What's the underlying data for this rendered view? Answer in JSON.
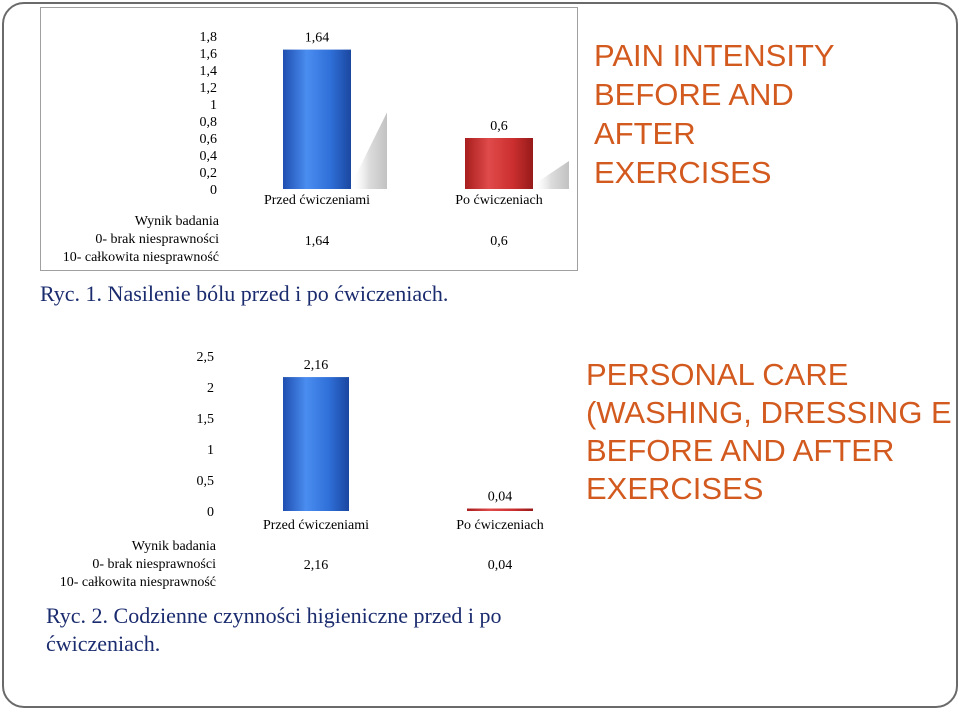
{
  "chart_data": [
    {
      "type": "bar",
      "categories": [
        "Przed ćwiczeniami",
        "Po ćwiczeniach"
      ],
      "values": [
        1.64,
        0.6
      ],
      "value_labels": [
        "1,64",
        "0,6"
      ],
      "yticks": [
        "0",
        "0,2",
        "0,4",
        "0,6",
        "0,8",
        "1",
        "1,2",
        "1,4",
        "1,6",
        "1,8"
      ],
      "ylim": [
        0,
        1.8
      ],
      "table_header": [
        "Wynik badania",
        "0- brak niesprawności",
        "10- całkowita niesprawność"
      ],
      "colors": [
        "#2f6fd8",
        "#cc2f2f"
      ]
    },
    {
      "type": "bar",
      "categories": [
        "Przed ćwiczeniami",
        "Po ćwiczeniach"
      ],
      "values": [
        2.16,
        0.04
      ],
      "value_labels": [
        "2,16",
        "0,04"
      ],
      "yticks": [
        "0",
        "0,5",
        "1",
        "1,5",
        "2",
        "2,5"
      ],
      "ylim": [
        0,
        2.5
      ],
      "table_header": [
        "Wynik badania",
        "0- brak niesprawności",
        "10- całkowita niesprawność"
      ],
      "colors": [
        "#2f6fd8",
        "#cc2f2f"
      ]
    }
  ],
  "captions": {
    "fig1": "Ryc. 1. Nasilenie bólu przed i po ćwiczeniach.",
    "fig2": "Ryc. 2. Codzienne czynności higieniczne przed i po ćwiczeniach."
  },
  "side_titles": {
    "t1": "PAIN INTENSITY\nBEFORE AND\nAFTER\nEXERCISES",
    "t2": "PERSONAL CARE\n(WASHING, DRESSING E\nBEFORE AND AFTER\nEXERCISES"
  }
}
